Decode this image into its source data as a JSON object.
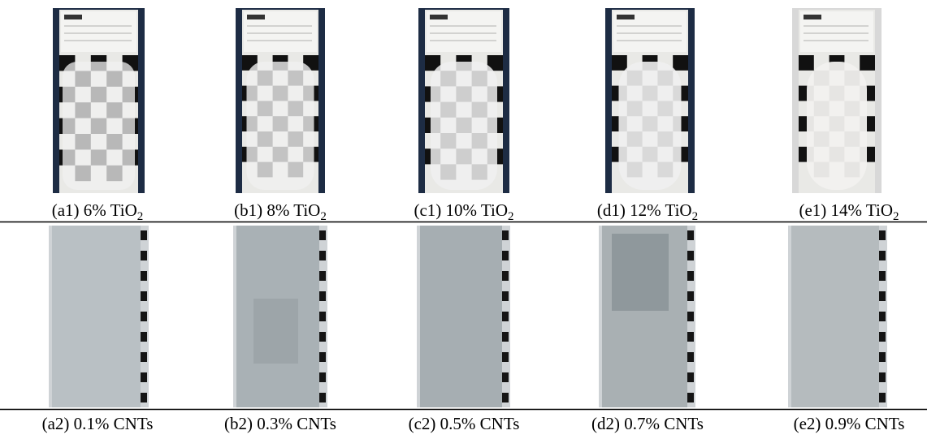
{
  "figure": {
    "row1": [
      {
        "label": "(a1) 6% TiO",
        "sub": "2"
      },
      {
        "label": "(b1) 8% TiO",
        "sub": "2"
      },
      {
        "label": "(c1) 10% TiO",
        "sub": "2"
      },
      {
        "label": "(d1) 12% TiO",
        "sub": "2"
      },
      {
        "label": "(e1) 14% TiO",
        "sub": "2"
      }
    ],
    "row2": [
      "(a2) 0.1% CNTs",
      "(b2) 0.3% CNTs",
      "(c2) 0.5% CNTs",
      "(d2) 0.7% CNTs",
      "(e2) 0.9% CNTs"
    ]
  }
}
